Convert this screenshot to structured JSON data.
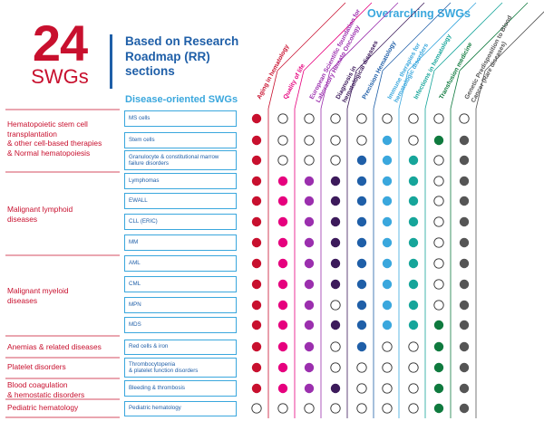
{
  "header": {
    "big_number": "24",
    "big_label": "SWGs",
    "rr_title": "Based on Research Roadmap (RR) sections",
    "overarching_title": "Overarching SWGs",
    "disease_title": "Disease-oriented SWGs"
  },
  "columns": [
    {
      "label": "Aging in hematology",
      "color": "#c8102e"
    },
    {
      "label": "Quality of life",
      "color": "#e6007e"
    },
    {
      "label": "European Scientific foundation for Laboratory Hemato Oncology",
      "color": "#9b2fae"
    },
    {
      "label": "Diagnosis in hematological diseases",
      "color": "#3c1a5b"
    },
    {
      "label": "Precision Hematology",
      "color": "#1f5fa8"
    },
    {
      "label": "Immune therapies for hematologic disorders",
      "color": "#3aa7dd"
    },
    {
      "label": "Infections in hematology",
      "color": "#16a59a"
    },
    {
      "label": "Transfusion medicine",
      "color": "#0f7a3e"
    },
    {
      "label": "Genetic Predisposition to Blood Cancer (Rare diseases)",
      "color": "#555555"
    }
  ],
  "groups": [
    {
      "label": "Hematopoietic stem cell transplantation\n& other cell-based therapies\n& Normal hematopoiesis"
    },
    {
      "label": "Malignant lymphoid\ndiseases"
    },
    {
      "label": "Malignant myeloid\ndiseases"
    },
    {
      "label": "Anemias & related diseases"
    },
    {
      "label": "Platelet disorders"
    },
    {
      "label": "Blood coagulation\n& hemostatic disorders"
    },
    {
      "label": "Pediatric hematology"
    }
  ],
  "rows": [
    {
      "label": "MS cells",
      "group": 0,
      "cells": [
        1,
        0,
        0,
        0,
        0,
        0,
        0,
        0,
        0
      ]
    },
    {
      "label": "Stem cells",
      "group": 0,
      "cells": [
        1,
        0,
        0,
        0,
        0,
        1,
        0,
        1,
        1
      ]
    },
    {
      "label": "Granulocyte & constitutional marrow\nfailure disorders",
      "group": 0,
      "cells": [
        1,
        0,
        0,
        0,
        1,
        1,
        1,
        0,
        1
      ]
    },
    {
      "label": "Lymphomas",
      "group": 1,
      "cells": [
        1,
        1,
        1,
        1,
        1,
        1,
        1,
        0,
        1
      ]
    },
    {
      "label": "EWALL",
      "group": 1,
      "cells": [
        1,
        1,
        1,
        1,
        1,
        1,
        1,
        0,
        1
      ]
    },
    {
      "label": "CLL (ERIC)",
      "group": 1,
      "cells": [
        1,
        1,
        1,
        1,
        1,
        1,
        1,
        0,
        1
      ]
    },
    {
      "label": "MM",
      "group": 1,
      "cells": [
        1,
        1,
        1,
        1,
        1,
        1,
        1,
        0,
        1
      ]
    },
    {
      "label": "AML",
      "group": 2,
      "cells": [
        1,
        1,
        1,
        1,
        1,
        1,
        1,
        0,
        1
      ]
    },
    {
      "label": "CML",
      "group": 2,
      "cells": [
        1,
        1,
        1,
        1,
        1,
        1,
        1,
        0,
        1
      ]
    },
    {
      "label": "MPN",
      "group": 2,
      "cells": [
        1,
        1,
        1,
        0,
        1,
        1,
        1,
        0,
        1
      ]
    },
    {
      "label": "MDS",
      "group": 2,
      "cells": [
        1,
        1,
        1,
        1,
        1,
        1,
        1,
        1,
        1
      ]
    },
    {
      "label": "Red cells & iron",
      "group": 3,
      "cells": [
        1,
        1,
        1,
        0,
        1,
        0,
        0,
        1,
        1
      ]
    },
    {
      "label": "Thrombocytopenia\n& platelet function disorders",
      "group": 4,
      "cells": [
        1,
        1,
        1,
        0,
        0,
        0,
        0,
        1,
        1
      ]
    },
    {
      "label": "Bleeding & thrombosis",
      "group": 5,
      "cells": [
        1,
        1,
        1,
        1,
        0,
        0,
        0,
        1,
        1
      ]
    },
    {
      "label": "Pediatric hematology",
      "group": 6,
      "cells": [
        0,
        0,
        0,
        0,
        0,
        0,
        0,
        1,
        1
      ]
    }
  ]
}
